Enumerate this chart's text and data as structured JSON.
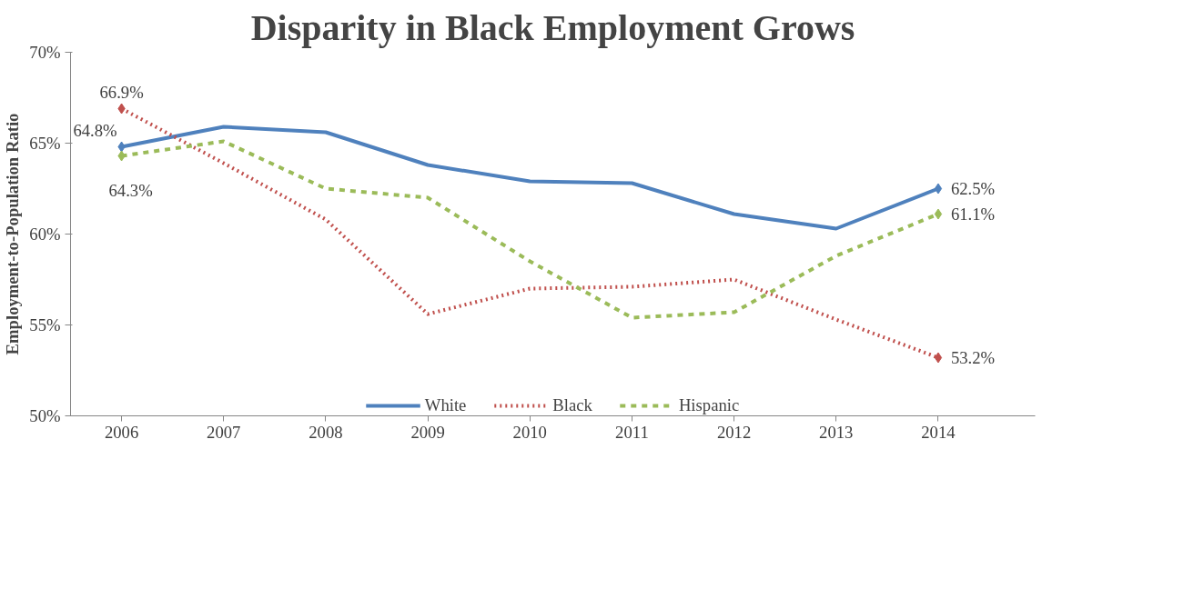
{
  "chart_data": {
    "type": "line",
    "title": "Disparity in Black Employment Grows",
    "ylabel": "Employment-to-Population Ratio",
    "categories": [
      "2006",
      "2007",
      "2008",
      "2009",
      "2010",
      "2011",
      "2012",
      "2013",
      "2014"
    ],
    "ylim": [
      50,
      70
    ],
    "yticks": [
      {
        "value": 50,
        "label": "50%"
      },
      {
        "value": 55,
        "label": "55%"
      },
      {
        "value": 60,
        "label": "60%"
      },
      {
        "value": 65,
        "label": "65%"
      },
      {
        "value": 70,
        "label": "70%"
      }
    ],
    "grid": false,
    "legend": "bottom",
    "series": [
      {
        "name": "White",
        "color": "#4f81bd",
        "line_style": "solid",
        "values": [
          64.8,
          65.9,
          65.6,
          63.8,
          62.9,
          62.8,
          61.1,
          60.3,
          62.5
        ],
        "value_labels": [
          "64.8%",
          null,
          null,
          null,
          null,
          null,
          null,
          null,
          "62.5%"
        ]
      },
      {
        "name": "Black",
        "color": "#c0504d",
        "line_style": "dotted",
        "values": [
          66.9,
          63.9,
          60.8,
          55.6,
          57.0,
          57.1,
          57.5,
          55.3,
          53.2
        ],
        "value_labels": [
          "66.9%",
          null,
          null,
          null,
          null,
          null,
          null,
          null,
          "53.2%"
        ]
      },
      {
        "name": "Hispanic",
        "color": "#9bbb59",
        "line_style": "dashed",
        "values": [
          64.3,
          65.1,
          62.5,
          62.0,
          58.5,
          55.4,
          55.7,
          58.8,
          61.1
        ],
        "value_labels": [
          "64.3%",
          null,
          null,
          null,
          null,
          null,
          null,
          null,
          "61.1%"
        ]
      }
    ]
  }
}
